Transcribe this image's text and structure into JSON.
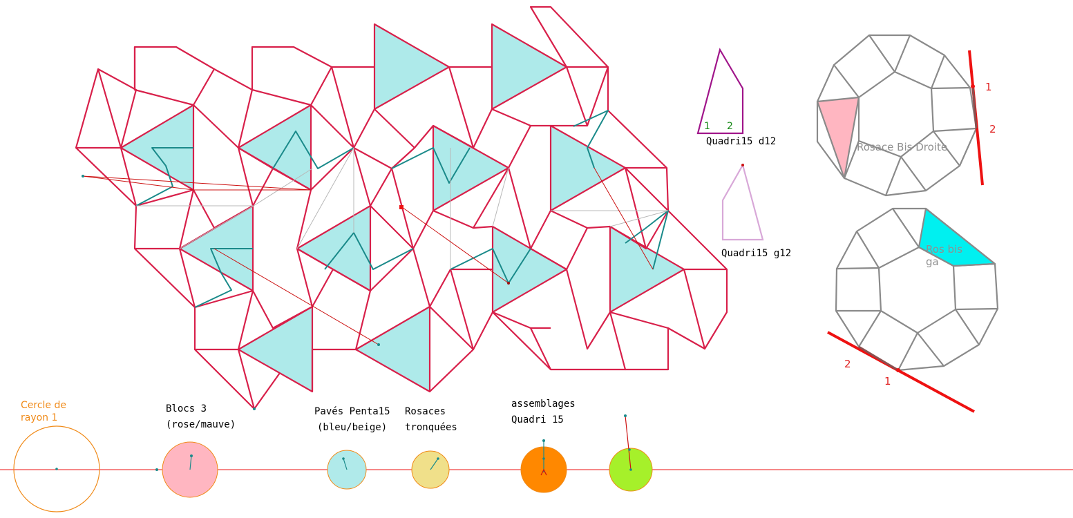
{
  "labels": {
    "quadri_d12": "Quadri15 d12",
    "quadri_g12": "Quadri15 g12",
    "quadri_d12_n1": "1",
    "quadri_d12_n2": "2",
    "rosace_droite": "Rosace Bis Droite",
    "rosace_gauche_1": "Ros bis",
    "rosace_gauche_2": "ga",
    "mark_top_1": "1",
    "mark_top_2": "2",
    "mark_bottom_2": "2",
    "mark_bottom_1": "1"
  },
  "sliders": {
    "cercle": {
      "line1": "Cercle de",
      "line2": "rayon 1"
    },
    "blocs": {
      "line1": "Blocs 3",
      "line2": "(rose/mauve)"
    },
    "paves": {
      "line1": "Pavés Penta15",
      "line2": "(bleu/beige)"
    },
    "rosaces": {
      "line1": "Rosaces",
      "line2": "tronquées"
    },
    "assemblages": {
      "line1": "assemblages",
      "line2": "Quadri 15"
    }
  },
  "colors": {
    "tile_stroke": "#d8204a",
    "triangle_fill": "#aeeaea",
    "teal_path": "#1a8a8a",
    "grey_line": "#8a8a8a",
    "pink_fill": "#ffb6c1",
    "cyan_fill": "#00f0f0",
    "purple": "#a0158a",
    "light_purple": "#d8a8d8",
    "red": "#ee1111",
    "orange": "#f08a18",
    "disc_pink": "#ffb6c1",
    "disc_blue": "#b0eaea",
    "disc_yellow": "#f0e08a",
    "disc_orange": "#ff8800",
    "disc_green": "#a6f02a"
  }
}
